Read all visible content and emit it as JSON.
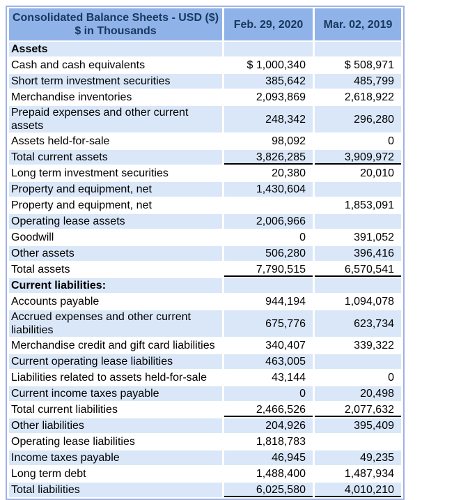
{
  "balance_sheet": {
    "header": {
      "title_line1": "Consolidated Balance Sheets - USD ($)",
      "title_line2": "$ in Thousands",
      "columns": [
        "Feb. 29, 2020",
        "Mar. 02, 2019"
      ]
    },
    "rows": [
      {
        "label": "Assets",
        "style": "section",
        "values": [
          "",
          ""
        ]
      },
      {
        "label": "Cash and cash equivalents",
        "style": "item",
        "values": [
          "$ 1,000,340",
          "$ 508,971"
        ]
      },
      {
        "label": "Short term investment securities",
        "style": "item",
        "values": [
          "385,642",
          "485,799"
        ]
      },
      {
        "label": "Merchandise inventories",
        "style": "item",
        "values": [
          "2,093,869",
          "2,618,922"
        ]
      },
      {
        "label": "Prepaid expenses and other current assets",
        "style": "item",
        "values": [
          "248,342",
          "296,280"
        ]
      },
      {
        "label": "Assets held-for-sale",
        "style": "item",
        "values": [
          "98,092",
          "0"
        ]
      },
      {
        "label": "Total current assets",
        "style": "total",
        "values": [
          "3,826,285",
          "3,909,972"
        ]
      },
      {
        "label": "Long term investment securities",
        "style": "item",
        "values": [
          "20,380",
          "20,010"
        ]
      },
      {
        "label": "Property and equipment, net",
        "style": "item",
        "values": [
          "1,430,604",
          ""
        ]
      },
      {
        "label": "Property and equipment, net",
        "style": "item",
        "values": [
          "",
          "1,853,091"
        ]
      },
      {
        "label": "Operating lease assets",
        "style": "item",
        "values": [
          "2,006,966",
          ""
        ]
      },
      {
        "label": "Goodwill",
        "style": "item",
        "values": [
          "0",
          "391,052"
        ]
      },
      {
        "label": "Other assets",
        "style": "item",
        "values": [
          "506,280",
          "396,416"
        ]
      },
      {
        "label": "Total assets",
        "style": "total",
        "values": [
          "7,790,515",
          "6,570,541"
        ]
      },
      {
        "label": "Current liabilities:",
        "style": "section",
        "values": [
          "",
          ""
        ]
      },
      {
        "label": "Accounts payable",
        "style": "item",
        "values": [
          "944,194",
          "1,094,078"
        ]
      },
      {
        "label": "Accrued expenses and other current liabilities",
        "style": "item",
        "values": [
          "675,776",
          "623,734"
        ]
      },
      {
        "label": "Merchandise credit and gift card liabilities",
        "style": "item",
        "values": [
          "340,407",
          "339,322"
        ]
      },
      {
        "label": "Current operating lease liabilities",
        "style": "item",
        "values": [
          "463,005",
          ""
        ]
      },
      {
        "label": "Liabilities related to assets held-for-sale",
        "style": "item",
        "values": [
          "43,144",
          "0"
        ]
      },
      {
        "label": "Current income taxes payable",
        "style": "item",
        "values": [
          "0",
          "20,498"
        ]
      },
      {
        "label": "Total current liabilities",
        "style": "total",
        "values": [
          "2,466,526",
          "2,077,632"
        ]
      },
      {
        "label": "Other liabilities",
        "style": "item",
        "values": [
          "204,926",
          "395,409"
        ]
      },
      {
        "label": "Operating lease liabilities",
        "style": "item",
        "values": [
          "1,818,783",
          ""
        ]
      },
      {
        "label": "Income taxes payable",
        "style": "item",
        "values": [
          "46,945",
          "49,235"
        ]
      },
      {
        "label": "Long term debt",
        "style": "item",
        "values": [
          "1,488,400",
          "1,487,934"
        ]
      },
      {
        "label": "Total liabilities",
        "style": "total",
        "values": [
          "6,025,580",
          "4,010,210"
        ]
      }
    ],
    "colors": {
      "header_bg": "#8FB3E8",
      "header_text": "#17375E",
      "stripe_bg": "#DAE7F8",
      "white_row_bg": "#FFFFFF",
      "outer_border": "#9FB1E6",
      "total_underline": "#000000",
      "body_text": "#000000"
    }
  }
}
